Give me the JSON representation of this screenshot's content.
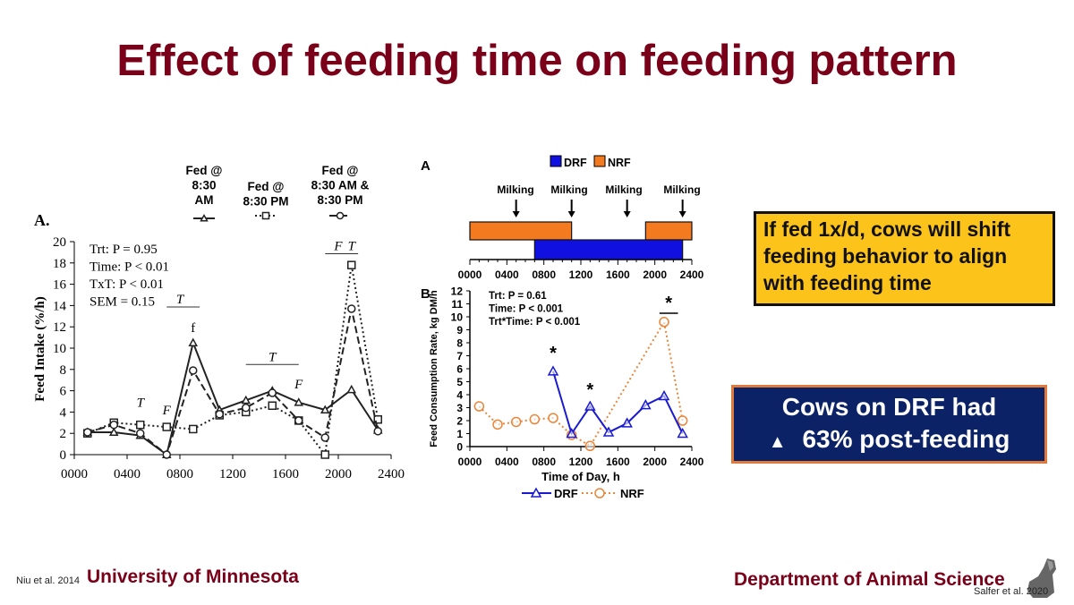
{
  "title": "Effect of feeding time on feeding pattern",
  "callouts": {
    "yellow": "If fed 1x/d, cows will shift feeding behavior to align with feeding time",
    "blue_line1": "Cows on DRF had",
    "blue_arrow_icon": "up-arrow-icon",
    "blue_line2": "63% post-feeding",
    "colors": {
      "yellow": "#fcc31b",
      "blue": "#0c2266",
      "orange_border": "#e07a3a"
    }
  },
  "footer": {
    "left_citation": "Niu et al. 2014",
    "university": "University of Minnesota",
    "department": "Department of Animal Science",
    "right_citation": "Salfer et al. 2020",
    "brand_color": "#7a0019"
  },
  "chart_data": [
    {
      "type": "line",
      "panel_label": "A.",
      "ylabel": "Feed Intake (%/h)",
      "xlabel": "",
      "x_ticks": [
        "0000",
        "0400",
        "0800",
        "1200",
        "1600",
        "2000",
        "2400"
      ],
      "xlim": [
        0,
        2400
      ],
      "ylim": [
        0,
        20
      ],
      "y_ticks": [
        0,
        2,
        4,
        6,
        8,
        10,
        12,
        14,
        16,
        18,
        20
      ],
      "grid": false,
      "legend_placement": "top",
      "stats": [
        "Trt: P = 0.95",
        "Time: P < 0.01",
        "TxT: P < 0.01",
        "SEM = 0.15"
      ],
      "annotations": [
        {
          "text": "T",
          "x": 500,
          "y": 4.5
        },
        {
          "text": "F",
          "x": 700,
          "y": 3.8
        },
        {
          "text": "T",
          "x": 800,
          "y": 14.2,
          "bar": [
            700,
            950
          ]
        },
        {
          "text": "f",
          "x": 900,
          "y": 11.5
        },
        {
          "text": "T",
          "x": 1500,
          "y": 8.8,
          "bar": [
            1300,
            1700
          ]
        },
        {
          "text": "F",
          "x": 1700,
          "y": 6.2
        },
        {
          "text": "F",
          "x": 2000,
          "y": 19.2,
          "bar": [
            1900,
            2150
          ]
        },
        {
          "text": "T",
          "x": 2100,
          "y": 19.2
        }
      ],
      "x": [
        100,
        300,
        500,
        700,
        900,
        1100,
        1300,
        1500,
        1700,
        1900,
        2100,
        2300
      ],
      "series": [
        {
          "name": "Fed @ 8:30 AM",
          "style": "solid",
          "marker": "triangle",
          "values": [
            2.1,
            2.1,
            1.8,
            0,
            10.5,
            4.2,
            5.1,
            6.0,
            4.9,
            4.2,
            6.1,
            2.3
          ]
        },
        {
          "name": "Fed @ 8:30 PM",
          "style": "dotted",
          "marker": "square",
          "values": [
            2.0,
            3.0,
            2.8,
            2.6,
            2.4,
            3.7,
            4.0,
            4.6,
            3.2,
            0,
            17.8,
            3.3
          ]
        },
        {
          "name": "Fed @ 8:30 AM & 8:30 PM",
          "style": "dashed",
          "marker": "circle",
          "values": [
            2.1,
            2.8,
            2.0,
            0,
            7.9,
            3.8,
            4.4,
            5.8,
            3.2,
            1.6,
            13.7,
            2.2
          ]
        }
      ],
      "legend_lines": [
        [
          "Fed @",
          "8:30",
          "AM"
        ],
        [
          "Fed @",
          "8:30 PM"
        ],
        [
          "Fed @",
          "8:30 AM &",
          "8:30 PM"
        ]
      ]
    },
    {
      "type": "timeline",
      "panel_label": "A",
      "legend": [
        {
          "name": "DRF",
          "color": "#1010e0"
        },
        {
          "name": "NRF",
          "color": "#f47a1f"
        }
      ],
      "x_ticks": [
        "0000",
        "0400",
        "0800",
        "1200",
        "1600",
        "2000",
        "2400"
      ],
      "xlim": [
        0,
        2400
      ],
      "milking_label": "Milking",
      "milking_times": [
        500,
        1100,
        1700,
        2300
      ],
      "bars": [
        {
          "name": "NRF",
          "start": 0,
          "end": 1100
        },
        {
          "name": "NRF",
          "start": 1900,
          "end": 2400
        },
        {
          "name": "DRF",
          "start": 700,
          "end": 2300
        }
      ]
    },
    {
      "type": "line",
      "panel_label": "B",
      "ylabel": "Feed Consumption Rate, kg DM/h",
      "xlabel": "Time of Day, h",
      "x_ticks": [
        "0000",
        "0400",
        "0800",
        "1200",
        "1600",
        "2000",
        "2400"
      ],
      "xlim": [
        0,
        2400
      ],
      "ylim": [
        0,
        12
      ],
      "y_ticks": [
        0,
        1,
        2,
        3,
        4,
        5,
        6,
        7,
        8,
        9,
        10,
        11,
        12
      ],
      "grid": false,
      "legend_placement": "bottom",
      "stats": [
        "Trt: P = 0.61",
        "Time: P < 0.001",
        "Trt*Time: P < 0.001"
      ],
      "significance": [
        {
          "text": "*",
          "x": 900
        },
        {
          "text": "*",
          "x": 1300
        },
        {
          "text": "*",
          "x": 2150,
          "bar": [
            2050,
            2250
          ]
        }
      ],
      "series": [
        {
          "name": "DRF",
          "color": "#1a1ad0",
          "style": "solid",
          "marker": "triangle",
          "x": [
            900,
            1100,
            1300,
            1500,
            1700,
            1900,
            2100,
            2300
          ],
          "values": [
            5.8,
            1.0,
            3.1,
            1.1,
            1.8,
            3.2,
            3.9,
            1.0
          ]
        },
        {
          "name": "NRF",
          "color": "#e8863a",
          "style": "dotted",
          "marker": "circle",
          "x": [
            100,
            300,
            500,
            700,
            900,
            1100,
            1300,
            2100,
            2300
          ],
          "values": [
            3.1,
            1.7,
            1.9,
            2.1,
            2.2,
            0.9,
            0.05,
            9.6,
            2.0
          ]
        }
      ]
    }
  ]
}
